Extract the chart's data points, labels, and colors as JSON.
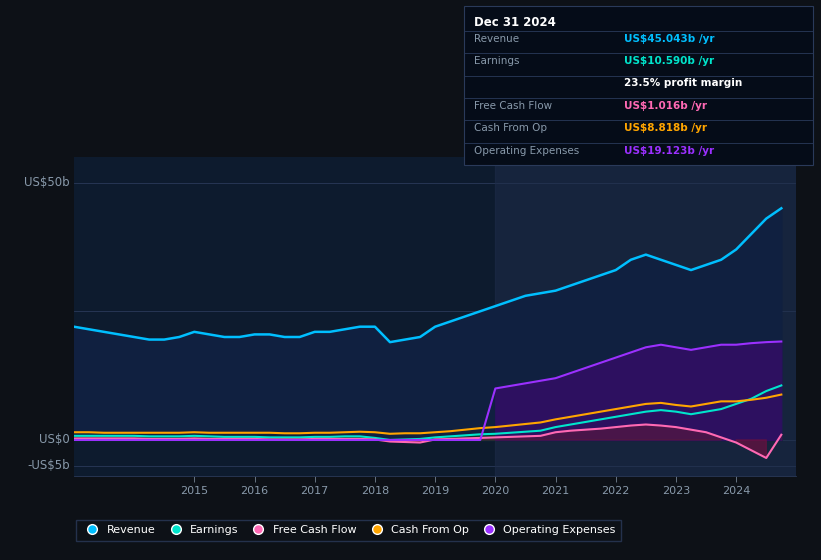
{
  "background_color": "#0d1117",
  "plot_bg_color": "#0d1b2e",
  "ylabel_top": "US$50b",
  "ylabel_mid": "US$0",
  "ylabel_bot": "-US$5b",
  "years": [
    2013.0,
    2013.25,
    2013.5,
    2013.75,
    2014.0,
    2014.25,
    2014.5,
    2014.75,
    2015.0,
    2015.25,
    2015.5,
    2015.75,
    2016.0,
    2016.25,
    2016.5,
    2016.75,
    2017.0,
    2017.25,
    2017.5,
    2017.75,
    2018.0,
    2018.25,
    2018.5,
    2018.75,
    2019.0,
    2019.25,
    2019.5,
    2019.75,
    2020.0,
    2020.25,
    2020.5,
    2020.75,
    2021.0,
    2021.25,
    2021.5,
    2021.75,
    2022.0,
    2022.25,
    2022.5,
    2022.75,
    2023.0,
    2023.25,
    2023.5,
    2023.75,
    2024.0,
    2024.25,
    2024.5,
    2024.75
  ],
  "revenue": [
    22.0,
    21.5,
    21.0,
    20.5,
    20.0,
    19.5,
    19.5,
    20.0,
    21.0,
    20.5,
    20.0,
    20.0,
    20.5,
    20.5,
    20.0,
    20.0,
    21.0,
    21.0,
    21.5,
    22.0,
    22.0,
    19.0,
    19.5,
    20.0,
    22.0,
    23.0,
    24.0,
    25.0,
    26.0,
    27.0,
    28.0,
    28.5,
    29.0,
    30.0,
    31.0,
    32.0,
    33.0,
    35.0,
    36.0,
    35.0,
    34.0,
    33.0,
    34.0,
    35.0,
    37.0,
    40.0,
    43.0,
    45.0
  ],
  "earnings": [
    0.8,
    0.8,
    0.8,
    0.8,
    0.8,
    0.7,
    0.7,
    0.7,
    0.8,
    0.7,
    0.6,
    0.6,
    0.6,
    0.5,
    0.5,
    0.5,
    0.6,
    0.6,
    0.7,
    0.7,
    0.4,
    0.0,
    0.1,
    0.2,
    0.5,
    0.7,
    0.9,
    1.1,
    1.2,
    1.4,
    1.6,
    1.8,
    2.5,
    3.0,
    3.5,
    4.0,
    4.5,
    5.0,
    5.5,
    5.8,
    5.5,
    5.0,
    5.5,
    6.0,
    7.0,
    8.0,
    9.5,
    10.59
  ],
  "free_cash_flow": [
    0.3,
    0.3,
    0.3,
    0.3,
    0.3,
    0.2,
    0.2,
    0.2,
    0.3,
    0.2,
    0.2,
    0.2,
    0.2,
    0.1,
    0.1,
    0.1,
    0.2,
    0.2,
    0.2,
    0.2,
    0.1,
    -0.3,
    -0.4,
    -0.5,
    0.1,
    0.2,
    0.3,
    0.4,
    0.5,
    0.6,
    0.7,
    0.8,
    1.5,
    1.8,
    2.0,
    2.2,
    2.5,
    2.8,
    3.0,
    2.8,
    2.5,
    2.0,
    1.5,
    0.5,
    -0.5,
    -2.0,
    -3.5,
    1.016
  ],
  "cash_from_op": [
    1.5,
    1.5,
    1.4,
    1.4,
    1.4,
    1.4,
    1.4,
    1.4,
    1.5,
    1.4,
    1.4,
    1.4,
    1.4,
    1.4,
    1.3,
    1.3,
    1.4,
    1.4,
    1.5,
    1.6,
    1.5,
    1.2,
    1.3,
    1.3,
    1.5,
    1.7,
    2.0,
    2.3,
    2.5,
    2.8,
    3.1,
    3.4,
    4.0,
    4.5,
    5.0,
    5.5,
    6.0,
    6.5,
    7.0,
    7.2,
    6.8,
    6.5,
    7.0,
    7.5,
    7.5,
    7.8,
    8.2,
    8.818
  ],
  "operating_expenses": [
    0.0,
    0.0,
    0.0,
    0.0,
    0.0,
    0.0,
    0.0,
    0.0,
    0.0,
    0.0,
    0.0,
    0.0,
    0.0,
    0.0,
    0.0,
    0.0,
    0.0,
    0.0,
    0.0,
    0.0,
    0.0,
    0.0,
    0.0,
    0.0,
    0.0,
    0.0,
    0.0,
    0.0,
    10.0,
    10.5,
    11.0,
    11.5,
    12.0,
    13.0,
    14.0,
    15.0,
    16.0,
    17.0,
    18.0,
    18.5,
    18.0,
    17.5,
    18.0,
    18.5,
    18.5,
    18.8,
    19.0,
    19.123
  ],
  "colors": {
    "revenue": "#00BFFF",
    "earnings": "#00E5CC",
    "free_cash_flow": "#FF69B4",
    "cash_from_op": "#FFA500",
    "operating_expenses": "#9B30FF",
    "revenue_fill": "#102040",
    "earnings_fill": "#0a3530",
    "operating_expenses_fill": "#2d1060"
  },
  "info_box": {
    "date": "Dec 31 2024",
    "revenue_val": "US$45.043b",
    "earnings_val": "US$10.590b",
    "profit_margin": "23.5%",
    "fcf_val": "US$1.016b",
    "cashop_val": "US$8.818b",
    "opex_val": "US$19.123b"
  },
  "x_ticks": [
    2015,
    2016,
    2017,
    2018,
    2019,
    2020,
    2021,
    2022,
    2023,
    2024
  ],
  "ylim": [
    -7,
    55
  ],
  "shade_start_year": 2020,
  "xmin": 2013.0,
  "xmax": 2025.0
}
